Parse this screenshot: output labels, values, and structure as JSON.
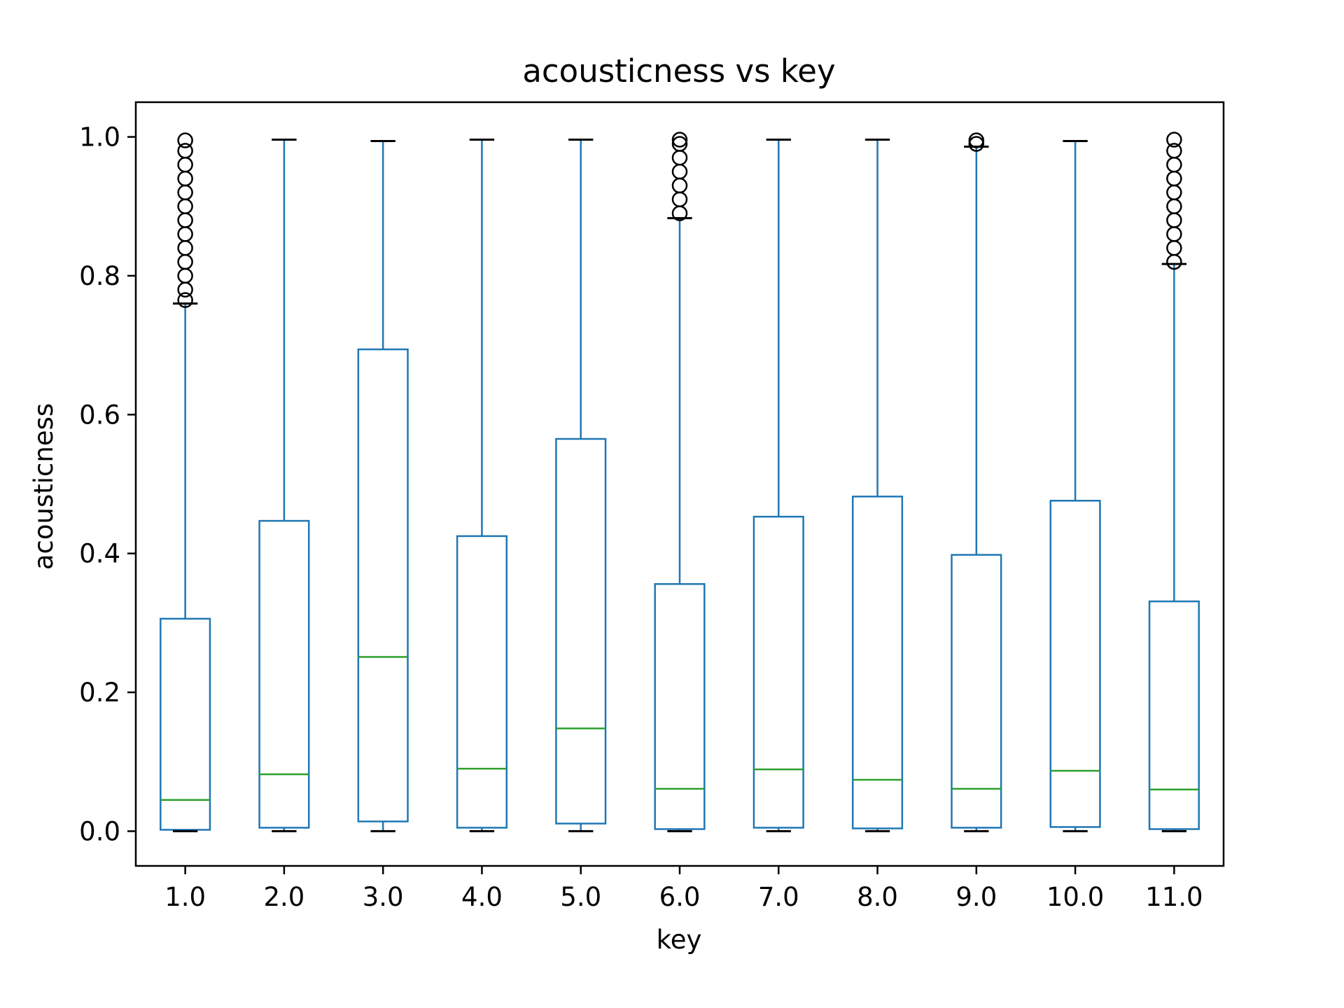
{
  "chart_data": {
    "type": "box",
    "title": "acousticness vs key",
    "xlabel": "key",
    "ylabel": "acousticness",
    "ylim": [
      -0.05,
      1.05
    ],
    "yticks": [
      "0.0",
      "0.2",
      "0.4",
      "0.6",
      "0.8",
      "1.0"
    ],
    "grid": false,
    "categories": [
      "1.0",
      "2.0",
      "3.0",
      "4.0",
      "5.0",
      "6.0",
      "7.0",
      "8.0",
      "9.0",
      "10.0",
      "11.0"
    ],
    "boxes": [
      {
        "min": 0.0,
        "q1": 0.002,
        "median": 0.045,
        "q3": 0.306,
        "max": 0.76,
        "outliers": [
          0.765,
          0.78,
          0.8,
          0.82,
          0.84,
          0.86,
          0.88,
          0.9,
          0.92,
          0.94,
          0.96,
          0.98,
          0.995
        ]
      },
      {
        "min": 0.0,
        "q1": 0.005,
        "median": 0.082,
        "q3": 0.447,
        "max": 0.996,
        "outliers": []
      },
      {
        "min": 0.0,
        "q1": 0.014,
        "median": 0.251,
        "q3": 0.694,
        "max": 0.994,
        "outliers": []
      },
      {
        "min": 0.0,
        "q1": 0.005,
        "median": 0.09,
        "q3": 0.425,
        "max": 0.996,
        "outliers": []
      },
      {
        "min": 0.0,
        "q1": 0.011,
        "median": 0.148,
        "q3": 0.565,
        "max": 0.996,
        "outliers": []
      },
      {
        "min": 0.0,
        "q1": 0.003,
        "median": 0.061,
        "q3": 0.356,
        "max": 0.883,
        "outliers": [
          0.89,
          0.91,
          0.93,
          0.95,
          0.97,
          0.99,
          0.996
        ]
      },
      {
        "min": 0.0,
        "q1": 0.005,
        "median": 0.089,
        "q3": 0.453,
        "max": 0.996,
        "outliers": []
      },
      {
        "min": 0.0,
        "q1": 0.004,
        "median": 0.074,
        "q3": 0.482,
        "max": 0.996,
        "outliers": []
      },
      {
        "min": 0.0,
        "q1": 0.005,
        "median": 0.061,
        "q3": 0.398,
        "max": 0.986,
        "outliers": [
          0.99,
          0.995
        ]
      },
      {
        "min": 0.0,
        "q1": 0.006,
        "median": 0.087,
        "q3": 0.476,
        "max": 0.994,
        "outliers": []
      },
      {
        "min": 0.0,
        "q1": 0.003,
        "median": 0.06,
        "q3": 0.331,
        "max": 0.817,
        "outliers": [
          0.82,
          0.84,
          0.86,
          0.88,
          0.9,
          0.92,
          0.94,
          0.96,
          0.98,
          0.996
        ]
      }
    ],
    "colors": {
      "box": "#1f77b4",
      "median": "#2ca02c",
      "whisker_cap": "#000000",
      "outlier": "#000000"
    }
  }
}
